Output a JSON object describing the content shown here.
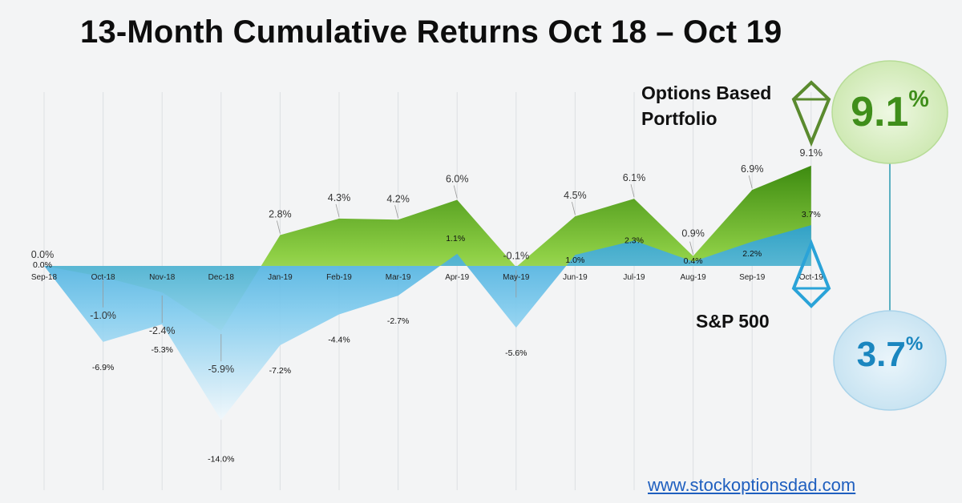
{
  "title": "13-Month Cumulative Returns Oct 18 – Oct 19",
  "chart_data": {
    "type": "area",
    "categories": [
      "Sep-18",
      "Oct-18",
      "Nov-18",
      "Dec-18",
      "Jan-19",
      "Feb-19",
      "Mar-19",
      "Apr-19",
      "May-19",
      "Jun-19",
      "Jul-19",
      "Aug-19",
      "Sep-19",
      "Oct-19"
    ],
    "ylim": [
      -21,
      13
    ],
    "grid": true,
    "series": [
      {
        "name": "Options Based Portfolio",
        "values": [
          0.0,
          -1.0,
          -2.4,
          -5.9,
          2.8,
          4.3,
          4.2,
          6.0,
          -0.1,
          4.5,
          6.1,
          0.9,
          6.9,
          9.1
        ],
        "labels": [
          "0.0%",
          "-1.0%",
          "-2.4%",
          "-5.9%",
          "2.8%",
          "4.3%",
          "4.2%",
          "6.0%",
          "-0.1%",
          "4.5%",
          "6.1%",
          "0.9%",
          "6.9%",
          "9.1%"
        ],
        "color": "#4f9a22"
      },
      {
        "name": "S&P 500",
        "values": [
          0.0,
          -6.9,
          -5.3,
          -14.0,
          -7.2,
          -4.4,
          -2.7,
          1.1,
          -5.6,
          1.0,
          2.3,
          0.4,
          2.2,
          3.7
        ],
        "labels": [
          "0.0%",
          "-6.9%",
          "-5.3%",
          "-14.0%",
          "-7.2%",
          "-4.4%",
          "-2.7%",
          "1.1%",
          "-5.6%",
          "1.0%",
          "2.3%",
          "0.4%",
          "2.2%",
          "3.7%"
        ],
        "color": "#2aa3d8"
      }
    ]
  },
  "legend": {
    "options_label": "Options Based Portfolio",
    "sp_label": "S&P 500"
  },
  "callouts": {
    "options_value": "9.1",
    "sp_value": "3.7",
    "percent_sign": "%"
  },
  "colors": {
    "options": "#4f9a22",
    "sp": "#2aa3d8"
  },
  "footer": {
    "url": "www.stockoptionsdad.com"
  }
}
